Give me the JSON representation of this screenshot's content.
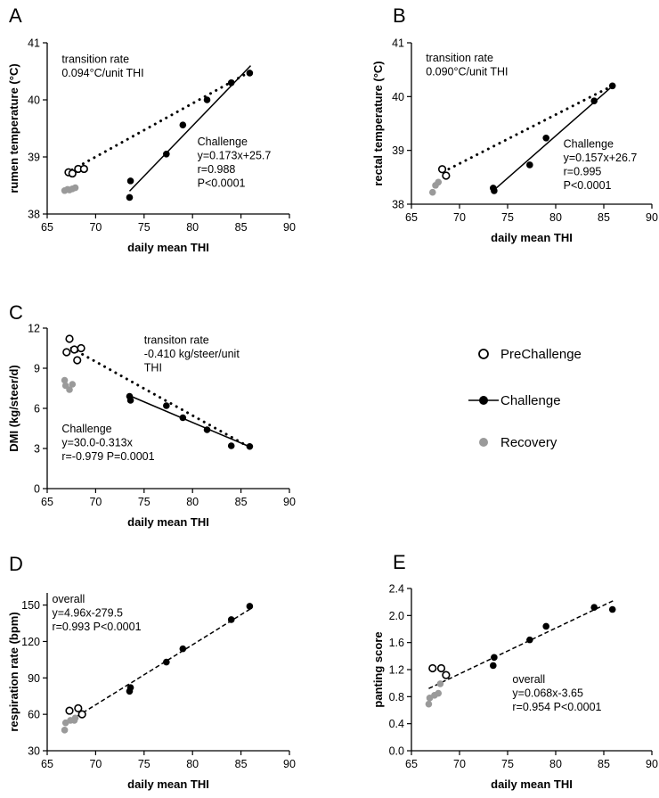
{
  "legend": {
    "items": [
      {
        "label": "PreChallenge",
        "style": "open"
      },
      {
        "label": "Challenge",
        "style": "filled"
      },
      {
        "label": "Recovery",
        "style": "grey"
      }
    ]
  },
  "chart_data": [
    {
      "id": "A",
      "letter": "A",
      "type": "scatter",
      "xlabel": "daily mean THI",
      "ylabel": "rumen temperature (°C)",
      "xlim": [
        65,
        90
      ],
      "xticks": [
        65,
        70,
        75,
        80,
        85,
        90
      ],
      "ylim": [
        38,
        41
      ],
      "yticks": [
        38,
        39,
        40,
        41
      ],
      "series": [
        {
          "name": "PreChallenge",
          "style": "open",
          "points": [
            [
              67.2,
              38.73
            ],
            [
              67.6,
              38.71
            ],
            [
              68.2,
              38.79
            ],
            [
              68.8,
              38.79
            ]
          ]
        },
        {
          "name": "Challenge",
          "style": "filled",
          "points": [
            [
              73.5,
              38.29
            ],
            [
              73.6,
              38.58
            ],
            [
              77.3,
              39.05
            ],
            [
              79.0,
              39.56
            ],
            [
              81.5,
              40.0
            ],
            [
              84.0,
              40.3
            ],
            [
              85.9,
              40.47
            ]
          ]
        },
        {
          "name": "Recovery",
          "style": "grey",
          "points": [
            [
              66.8,
              38.41
            ],
            [
              67.1,
              38.43
            ],
            [
              67.3,
              38.42
            ],
            [
              67.6,
              38.44
            ],
            [
              67.9,
              38.46
            ]
          ]
        }
      ],
      "lines": [
        {
          "style": "solid",
          "from": [
            73.5,
            38.4
          ],
          "to": [
            86.0,
            40.6
          ]
        },
        {
          "style": "dotted",
          "from": [
            67.0,
            38.72
          ],
          "to": [
            86.0,
            40.5
          ]
        }
      ],
      "annotations": [
        {
          "lines": [
            "transition rate",
            "0.094°C/unit THI"
          ],
          "at": [
            66.5,
            40.65
          ]
        },
        {
          "lines": [
            "Challenge",
            "y=0.173x+25.7",
            "r=0.988",
            "P<0.0001"
          ],
          "at": [
            80.5,
            39.2
          ]
        }
      ]
    },
    {
      "id": "B",
      "letter": "B",
      "type": "scatter",
      "xlabel": "daily mean THI",
      "ylabel": "rectal temperature (°C)",
      "xlim": [
        65,
        90
      ],
      "xticks": [
        65,
        70,
        75,
        80,
        85,
        90
      ],
      "ylim": [
        38,
        41
      ],
      "yticks": [
        38,
        39,
        40,
        41
      ],
      "series": [
        {
          "name": "PreChallenge",
          "style": "open",
          "points": [
            [
              68.2,
              38.65
            ],
            [
              68.6,
              38.53
            ]
          ]
        },
        {
          "name": "Challenge",
          "style": "filled",
          "points": [
            [
              73.5,
              38.3
            ],
            [
              73.6,
              38.25
            ],
            [
              77.3,
              38.73
            ],
            [
              79.0,
              39.23
            ],
            [
              84.0,
              39.92
            ],
            [
              85.9,
              40.2
            ]
          ]
        },
        {
          "name": "Recovery",
          "style": "grey",
          "points": [
            [
              67.2,
              38.22
            ],
            [
              67.5,
              38.35
            ],
            [
              67.8,
              38.41
            ]
          ]
        }
      ],
      "lines": [
        {
          "style": "solid",
          "from": [
            73.5,
            38.25
          ],
          "to": [
            86.0,
            40.21
          ]
        },
        {
          "style": "dotted",
          "from": [
            68.3,
            38.6
          ],
          "to": [
            86.0,
            40.21
          ]
        }
      ],
      "annotations": [
        {
          "lines": [
            "transition rate",
            "0.090°C/unit THI"
          ],
          "at": [
            66.5,
            40.65
          ]
        },
        {
          "lines": [
            "Challenge",
            "y=0.157x+26.7",
            "r=0.995",
            "P<0.0001"
          ],
          "at": [
            80.8,
            39.05
          ]
        }
      ]
    },
    {
      "id": "C",
      "letter": "C",
      "type": "scatter",
      "xlabel": "daily mean THI",
      "ylabel": "DMI (kg/steer/d)",
      "xlim": [
        65,
        90
      ],
      "xticks": [
        65,
        70,
        75,
        80,
        85,
        90
      ],
      "ylim": [
        0,
        12
      ],
      "yticks": [
        0,
        3,
        6,
        9,
        12
      ],
      "series": [
        {
          "name": "PreChallenge",
          "style": "open",
          "points": [
            [
              67.0,
              10.2
            ],
            [
              67.3,
              11.2
            ],
            [
              67.8,
              10.4
            ],
            [
              68.1,
              9.6
            ],
            [
              68.5,
              10.5
            ]
          ]
        },
        {
          "name": "Challenge",
          "style": "filled",
          "points": [
            [
              73.5,
              6.9
            ],
            [
              73.6,
              6.6
            ],
            [
              77.3,
              6.2
            ],
            [
              79.0,
              5.3
            ],
            [
              81.5,
              4.4
            ],
            [
              84.0,
              3.2
            ],
            [
              85.9,
              3.15
            ]
          ]
        },
        {
          "name": "Recovery",
          "style": "grey",
          "points": [
            [
              66.8,
              8.1
            ],
            [
              66.9,
              7.7
            ],
            [
              67.3,
              7.4
            ],
            [
              67.6,
              7.8
            ]
          ]
        }
      ],
      "lines": [
        {
          "style": "solid",
          "from": [
            73.5,
            6.95
          ],
          "to": [
            86.0,
            3.1
          ]
        },
        {
          "style": "dotted",
          "from": [
            67.5,
            10.5
          ],
          "to": [
            86.0,
            3.05
          ]
        }
      ],
      "annotations": [
        {
          "lines": [
            "transiton rate",
            "-0.410 kg/steer/unit",
            "THI"
          ],
          "at": [
            75.0,
            10.85
          ]
        },
        {
          "lines": [
            "Challenge",
            "y=30.0-0.313x",
            "r=-0.979 P=0.0001"
          ],
          "at": [
            66.5,
            4.2
          ]
        }
      ]
    },
    {
      "id": "D",
      "letter": "D",
      "type": "scatter",
      "xlabel": "daily mean THI",
      "ylabel": "respiration rate (bpm)",
      "xlim": [
        65,
        90
      ],
      "xticks": [
        65,
        70,
        75,
        80,
        85,
        90
      ],
      "ylim": [
        30,
        160
      ],
      "yticks": [
        30,
        60,
        90,
        120,
        150
      ],
      "series": [
        {
          "name": "PreChallenge",
          "style": "open",
          "points": [
            [
              67.3,
              63
            ],
            [
              68.2,
              65
            ],
            [
              68.6,
              60
            ]
          ]
        },
        {
          "name": "Challenge",
          "style": "filled",
          "points": [
            [
              73.5,
              79
            ],
            [
              73.6,
              82
            ],
            [
              77.3,
              103
            ],
            [
              79.0,
              114
            ],
            [
              84.0,
              138
            ],
            [
              85.9,
              149
            ]
          ]
        },
        {
          "name": "Recovery",
          "style": "grey",
          "points": [
            [
              66.8,
              47
            ],
            [
              66.9,
              53
            ],
            [
              67.4,
              55
            ],
            [
              67.8,
              55
            ],
            [
              67.9,
              57
            ]
          ]
        }
      ],
      "lines": [
        {
          "style": "dashed",
          "from": [
            66.8,
            52
          ],
          "to": [
            86.0,
            147
          ]
        }
      ],
      "annotations": [
        {
          "lines": [
            "overall",
            "y=4.96x-279.5",
            "r=0.993 P<0.0001"
          ],
          "at": [
            65.5,
            152
          ]
        }
      ]
    },
    {
      "id": "E",
      "letter": "E",
      "type": "scatter",
      "xlabel": "daily mean THI",
      "ylabel": "panting score",
      "xlim": [
        65,
        90
      ],
      "xticks": [
        65,
        70,
        75,
        80,
        85,
        90
      ],
      "ylim": [
        0,
        2.4
      ],
      "yticks": [
        0.0,
        0.4,
        0.8,
        1.2,
        1.6,
        2.0,
        2.4
      ],
      "ytick_labels": [
        "0.0",
        "0.4",
        "0.8",
        "1.2",
        "1.6",
        "2.0",
        "2.4"
      ],
      "series": [
        {
          "name": "PreChallenge",
          "style": "open",
          "points": [
            [
              67.2,
              1.22
            ],
            [
              68.1,
              1.22
            ],
            [
              68.6,
              1.12
            ]
          ]
        },
        {
          "name": "Challenge",
          "style": "filled",
          "points": [
            [
              73.5,
              1.26
            ],
            [
              73.6,
              1.38
            ],
            [
              77.3,
              1.64
            ],
            [
              79.0,
              1.84
            ],
            [
              84.0,
              2.12
            ],
            [
              85.9,
              2.09
            ]
          ]
        },
        {
          "name": "Recovery",
          "style": "grey",
          "points": [
            [
              66.8,
              0.69
            ],
            [
              66.9,
              0.78
            ],
            [
              67.4,
              0.82
            ],
            [
              67.8,
              0.85
            ],
            [
              68.0,
              0.99
            ]
          ]
        }
      ],
      "lines": [
        {
          "style": "dashed",
          "from": [
            66.8,
            0.92
          ],
          "to": [
            86.0,
            2.22
          ]
        }
      ],
      "annotations": [
        {
          "lines": [
            "overall",
            "y=0.068x-3.65",
            "r=0.954 P<0.0001"
          ],
          "at": [
            75.5,
            1.0
          ]
        }
      ]
    }
  ]
}
